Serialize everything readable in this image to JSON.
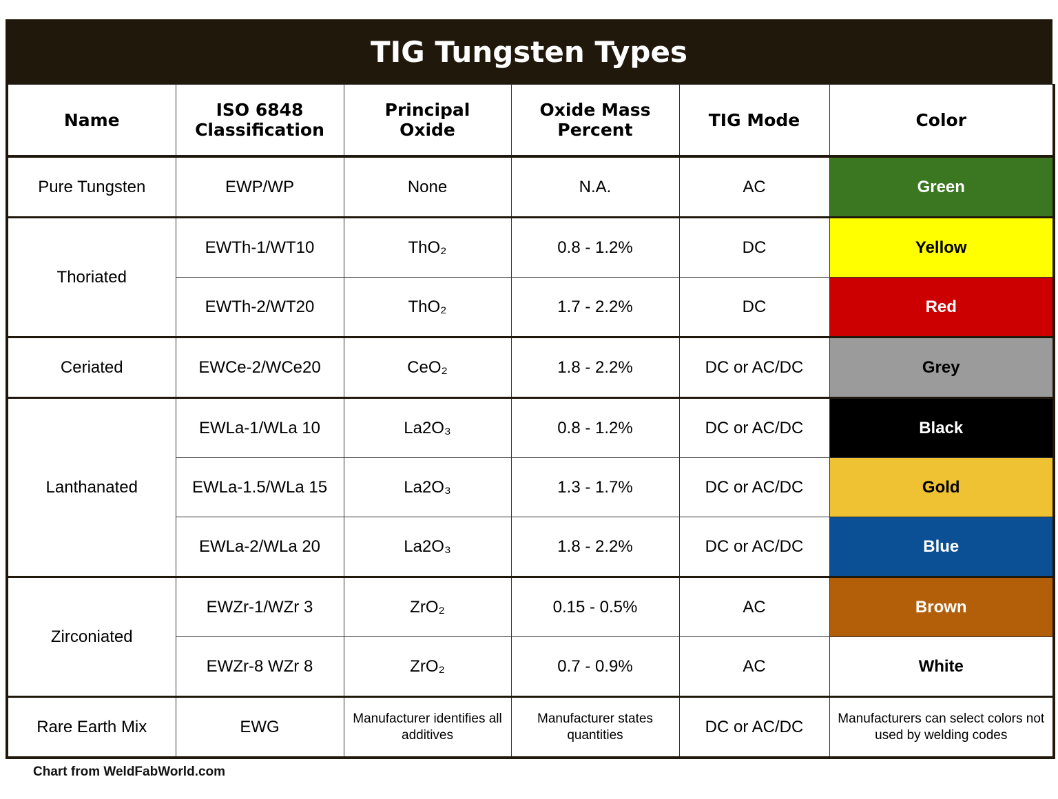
{
  "title": "TIG Tungsten Types",
  "table": {
    "headers": [
      "Name",
      "ISO 6848\nClassification",
      "Principal\nOxide",
      "Oxide Mass\nPercent",
      "TIG Mode",
      "Color"
    ],
    "groups": [
      {
        "name": "Pure Tungsten",
        "rows": [
          {
            "iso": "EWP/WP",
            "oxide": "None",
            "percent": "N.A.",
            "mode": "AC",
            "color": "Green",
            "fill": "#3a7720",
            "text_color": "#ffffff"
          }
        ]
      },
      {
        "name": "Thoriated",
        "rows": [
          {
            "iso": "EWTh-1/WT10",
            "oxide": "ThO₂",
            "percent": "0.8 - 1.2%",
            "mode": "DC",
            "color": "Yellow",
            "fill": "#ffff00",
            "text_color": "#000000"
          },
          {
            "iso": "EWTh-2/WT20",
            "oxide": "ThO₂",
            "percent": "1.7 - 2.2%",
            "mode": "DC",
            "color": "Red",
            "fill": "#cc0000",
            "text_color": "#ffffff"
          }
        ]
      },
      {
        "name": "Ceriated",
        "rows": [
          {
            "iso": "EWCe-2/WCe20",
            "oxide": "CeO₂",
            "percent": "1.8 - 2.2%",
            "mode": "DC or AC/DC",
            "color": "Grey",
            "fill": "#9b9b9b",
            "text_color": "#000000"
          }
        ]
      },
      {
        "name": "Lanthanated",
        "rows": [
          {
            "iso": "EWLa-1/WLa 10",
            "oxide": "La2O₃",
            "percent": "0.8 - 1.2%",
            "mode": "DC or AC/DC",
            "color": "Black",
            "fill": "#000000",
            "text_color": "#ffffff"
          },
          {
            "iso": "EWLa-1.5/WLa 15",
            "oxide": "La2O₃",
            "percent": "1.3 - 1.7%",
            "mode": "DC or AC/DC",
            "color": "Gold",
            "fill": "#eec233",
            "text_color": "#000000"
          },
          {
            "iso": "EWLa-2/WLa 20",
            "oxide": "La2O₃",
            "percent": "1.8 - 2.2%",
            "mode": "DC or AC/DC",
            "color": "Blue",
            "fill": "#0b4f94",
            "text_color": "#ffffff"
          }
        ]
      },
      {
        "name": "Zirconiated",
        "rows": [
          {
            "iso": "EWZr-1/WZr 3",
            "oxide": "ZrO₂",
            "percent": "0.15 - 0.5%",
            "mode": "AC",
            "color": "Brown",
            "fill": "#b35f0a",
            "text_color": "#ffffff"
          },
          {
            "iso": "EWZr-8 WZr 8",
            "oxide": "ZrO₂",
            "percent": "0.7 - 0.9%",
            "mode": "AC",
            "color": "White",
            "fill": "#ffffff",
            "text_color": "#000000"
          }
        ]
      },
      {
        "name": "Rare Earth Mix",
        "rows": [
          {
            "iso": "EWG",
            "oxide": "Manufacturer identifies all additives",
            "percent": "Manufacturer states quantities",
            "mode": "DC or AC/DC",
            "color": "Manufacturers can select colors not used by welding codes",
            "fill": "#ffffff",
            "text_color": "#000000"
          }
        ]
      }
    ]
  },
  "footer": "Chart from WeldFabWorld.com"
}
